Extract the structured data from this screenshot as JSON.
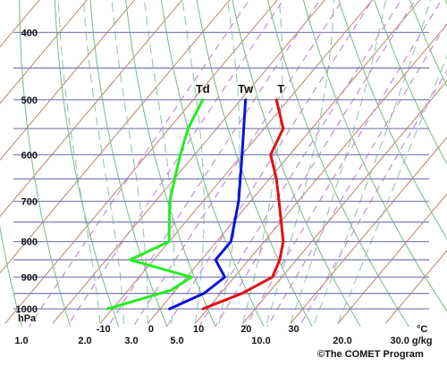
{
  "chart_data": {
    "type": "line",
    "plot_kind": "skew-T log-p thermodynamic diagram",
    "pressure_ticks": [
      400,
      500,
      600,
      700,
      800,
      900,
      1000
    ],
    "pressure_unit": "hPa",
    "temperature_ticks": [
      -10,
      0,
      10,
      20,
      30
    ],
    "temperature_unit": "°C",
    "mixing_ratio_ticks": [
      "1.0",
      "2.0",
      "3.0",
      "5.0",
      "10.0",
      "20.0",
      "30.0 g/kg"
    ],
    "credit": "©The COMET Program",
    "series": [
      {
        "name": "T",
        "color": "#e01010",
        "points": [
          {
            "p": 1000,
            "t": 9
          },
          {
            "p": 950,
            "t": 14.5
          },
          {
            "p": 900,
            "t": 18
          },
          {
            "p": 850,
            "t": 16.5
          },
          {
            "p": 800,
            "t": 14
          },
          {
            "p": 700,
            "t": 6
          },
          {
            "p": 650,
            "t": 1.5
          },
          {
            "p": 600,
            "t": -4
          },
          {
            "p": 550,
            "t": -6
          },
          {
            "p": 500,
            "t": -12.5
          }
        ]
      },
      {
        "name": "Tw",
        "color": "#0a14d8",
        "points": [
          {
            "p": 1000,
            "t": 2
          },
          {
            "p": 950,
            "t": 6.5
          },
          {
            "p": 900,
            "t": 8
          },
          {
            "p": 850,
            "t": 3
          },
          {
            "p": 800,
            "t": 3
          },
          {
            "p": 700,
            "t": -2.5
          },
          {
            "p": 600,
            "t": -10
          },
          {
            "p": 500,
            "t": -19
          }
        ]
      },
      {
        "name": "Td",
        "color": "#22ee22",
        "points": [
          {
            "p": 1000,
            "t": -11
          },
          {
            "p": 940,
            "t": -1
          },
          {
            "p": 900,
            "t": 1
          },
          {
            "p": 850,
            "t": -15
          },
          {
            "p": 800,
            "t": -10
          },
          {
            "p": 700,
            "t": -17
          },
          {
            "p": 600,
            "t": -23
          },
          {
            "p": 550,
            "t": -26
          },
          {
            "p": 500,
            "t": -28
          }
        ]
      }
    ],
    "background_colors": {
      "isobar": "#8585b8",
      "isotherm": "#b89078",
      "dry_adiabat": "#88bb90",
      "moist_adiabat": "#90c0a8",
      "mixing_ratio": "#c090d0"
    }
  }
}
